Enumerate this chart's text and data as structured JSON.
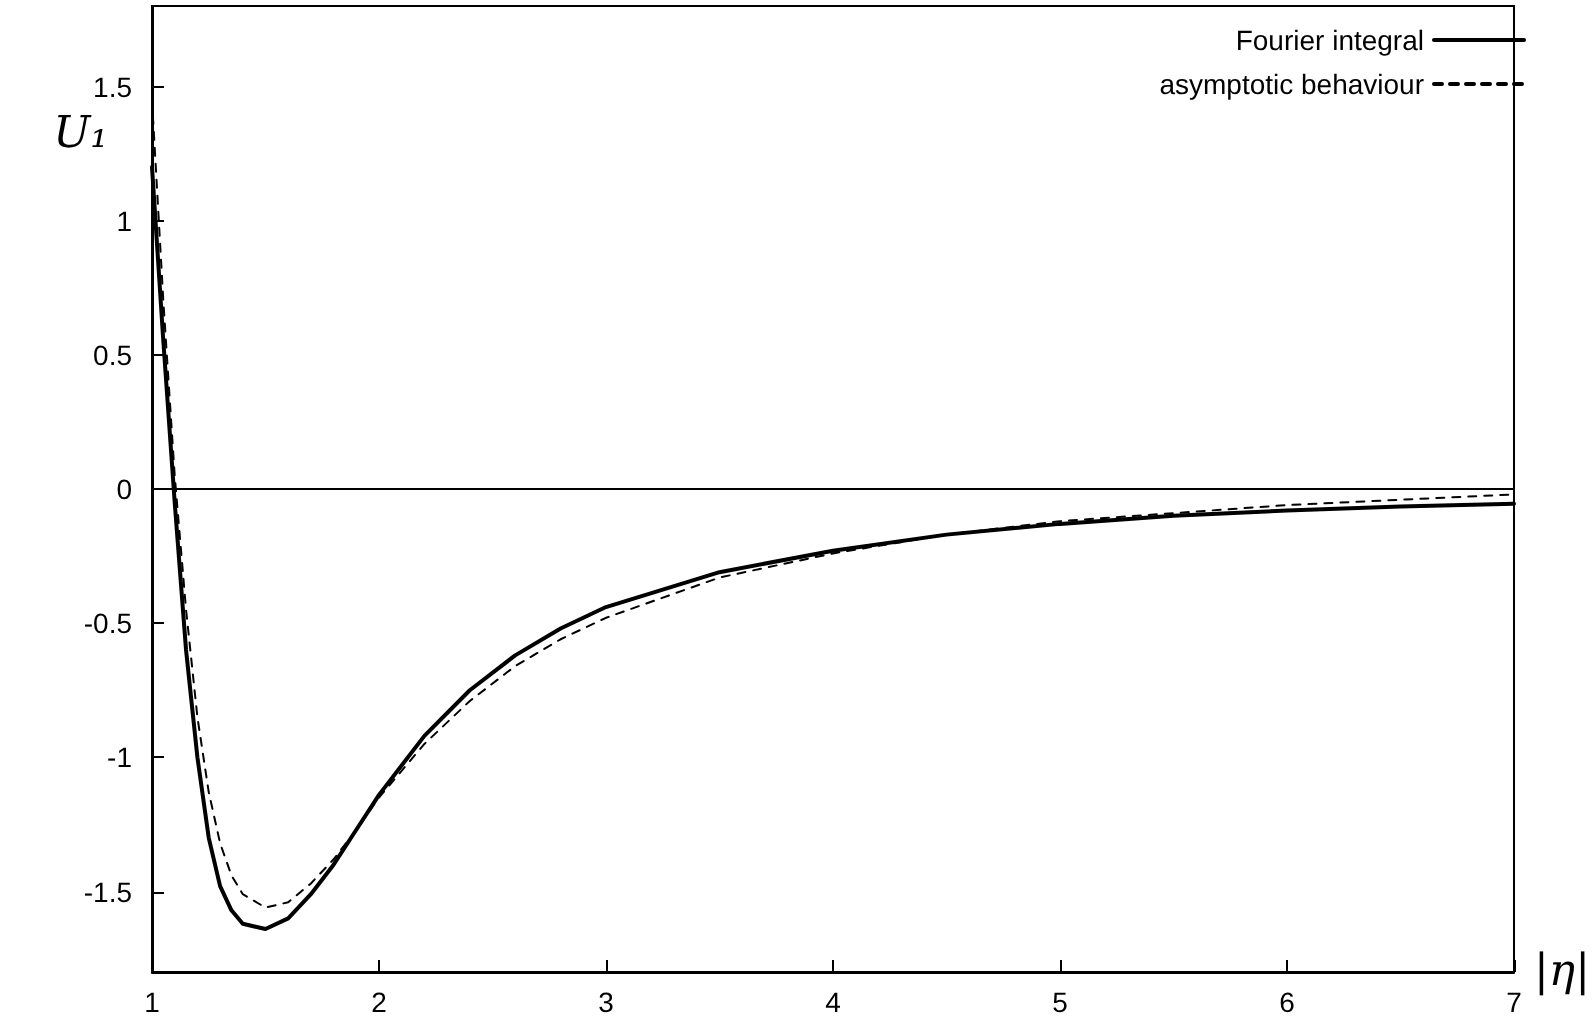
{
  "chart_data": {
    "type": "line",
    "xlabel": "|η|",
    "ylabel": "U₁",
    "xlim": [
      1,
      7
    ],
    "xticks": [
      1,
      2,
      3,
      4,
      5,
      6,
      7
    ],
    "ylim": [
      -1.8,
      1.8
    ],
    "yticks": [
      -1.5,
      -1,
      -0.5,
      0,
      0.5,
      1,
      1.5
    ],
    "grid": false,
    "legend": "top right",
    "marker": "none",
    "ref_lines": [
      {
        "axis": "y",
        "value": 0,
        "color": "#000000",
        "line_style": "solid"
      }
    ],
    "series": [
      {
        "name": "Fourier integral",
        "color": "#000000",
        "line_style": "solid",
        "x": [
          1.0,
          1.05,
          1.1,
          1.15,
          1.2,
          1.25,
          1.3,
          1.35,
          1.4,
          1.5,
          1.6,
          1.7,
          1.8,
          1.9,
          2.0,
          2.2,
          2.4,
          2.6,
          2.8,
          3.0,
          3.5,
          4.0,
          4.5,
          5.0,
          5.5,
          6.0,
          6.5,
          7.0
        ],
        "values": [
          1.2,
          0.55,
          -0.05,
          -0.6,
          -1.0,
          -1.3,
          -1.48,
          -1.57,
          -1.62,
          -1.64,
          -1.6,
          -1.51,
          -1.4,
          -1.27,
          -1.14,
          -0.92,
          -0.75,
          -0.62,
          -0.52,
          -0.44,
          -0.31,
          -0.23,
          -0.17,
          -0.13,
          -0.1,
          -0.08,
          -0.065,
          -0.055
        ]
      },
      {
        "name": "asymptotic behaviour",
        "color": "#000000",
        "line_style": "dashed",
        "x": [
          1.0,
          1.05,
          1.1,
          1.15,
          1.2,
          1.25,
          1.3,
          1.35,
          1.4,
          1.5,
          1.6,
          1.7,
          1.8,
          1.9,
          2.0,
          2.2,
          2.4,
          2.6,
          2.8,
          3.0,
          3.5,
          4.0,
          4.5,
          5.0,
          5.5,
          6.0,
          6.5,
          7.0
        ],
        "values": [
          1.45,
          0.7,
          0.05,
          -0.45,
          -0.85,
          -1.13,
          -1.32,
          -1.44,
          -1.51,
          -1.56,
          -1.54,
          -1.47,
          -1.38,
          -1.27,
          -1.15,
          -0.95,
          -0.79,
          -0.66,
          -0.56,
          -0.48,
          -0.33,
          -0.24,
          -0.17,
          -0.12,
          -0.09,
          -0.06,
          -0.04,
          -0.02
        ]
      }
    ]
  }
}
